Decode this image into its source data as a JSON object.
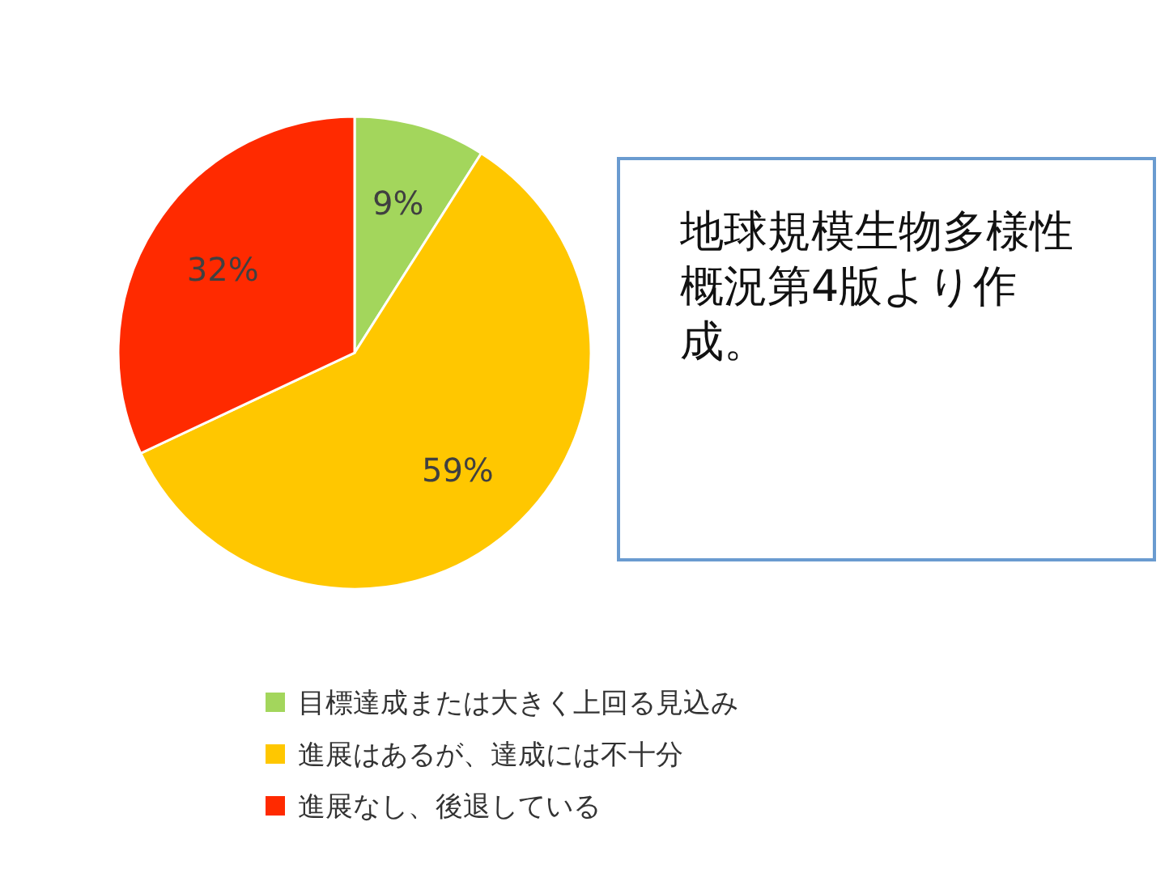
{
  "chart_data": {
    "type": "pie",
    "categories": [
      "目標達成または大きく上回る見込み",
      "進展はあるが、達成には不十分",
      "進展なし、後退している"
    ],
    "values": [
      9,
      59,
      32
    ],
    "colors": [
      "#a3d65c",
      "#ffc700",
      "#ff2a00"
    ],
    "value_labels": [
      "9%",
      "59%",
      "32%"
    ],
    "legend": "bottom",
    "annotations": [
      "地球規模生物多様性概況第4版より作成。"
    ]
  }
}
